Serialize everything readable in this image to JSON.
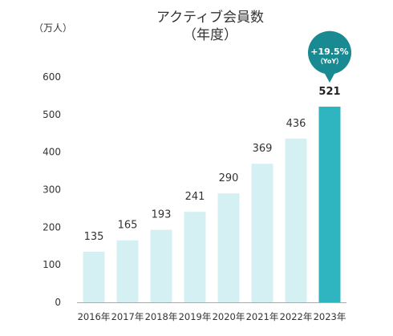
{
  "chart_data": {
    "type": "bar",
    "title": "アクティブ会員数",
    "subtitle": "（年度）",
    "ylabel": "（万人）",
    "xlabel": "",
    "ylim": [
      0,
      600
    ],
    "yticks": [
      "0",
      "100",
      "200",
      "300",
      "400",
      "500",
      "600"
    ],
    "categories": [
      "2016年",
      "2017年",
      "2018年",
      "2019年",
      "2020年",
      "2021年",
      "2022年",
      "2023年"
    ],
    "values": [
      135,
      165,
      193,
      241,
      290,
      369,
      436,
      521
    ],
    "highlight_index": 7,
    "badge": {
      "main": "+19.5%",
      "sub": "（YoY）"
    },
    "grid": false,
    "colors": {
      "bar": "#d4f0f3",
      "highlight": "#2fb5bf",
      "badge": "#1a8a92"
    }
  }
}
